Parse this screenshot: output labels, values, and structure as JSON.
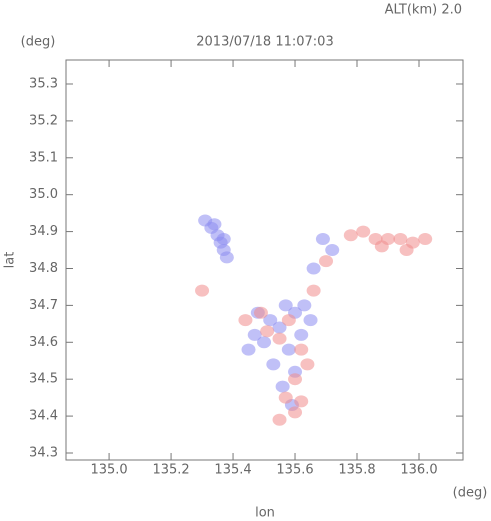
{
  "chart_data": {
    "type": "scatter",
    "title": "2013/07/18 11:07:03",
    "subtitle": "ALT(km) 2.0",
    "xlabel": "lon",
    "ylabel": "lat",
    "xunit": "(deg)",
    "yunit": "(deg)",
    "xlim": [
      134.861,
      136.142
    ],
    "ylim": [
      34.281,
      35.365
    ],
    "xticks": [
      {
        "value": 135,
        "label": "135.0"
      },
      135.2,
      135.4,
      135.6,
      135.8,
      {
        "value": 136,
        "label": "136.0"
      }
    ],
    "yticks": [
      34.3,
      34.4,
      34.5,
      34.6,
      34.7,
      34.8,
      34.9,
      {
        "value": 35,
        "label": "35.0"
      },
      35.1,
      35.2,
      35.3
    ],
    "series": [
      {
        "color": "#8c8cf0",
        "x": [
          135.31,
          135.33,
          135.35,
          135.36,
          135.37,
          135.38,
          135.37,
          135.34,
          135.48,
          135.52,
          135.55,
          135.6,
          135.62,
          135.5,
          135.58,
          135.65,
          135.53,
          135.6,
          135.47,
          135.63,
          135.56,
          135.59,
          135.72,
          135.66,
          135.45,
          135.57,
          135.69
        ],
        "y": [
          34.93,
          34.91,
          34.89,
          34.87,
          34.85,
          34.83,
          34.88,
          34.92,
          34.68,
          34.66,
          34.64,
          34.68,
          34.62,
          34.6,
          34.58,
          34.66,
          34.54,
          34.52,
          34.62,
          34.7,
          34.48,
          34.43,
          34.85,
          34.8,
          34.58,
          34.7,
          34.88
        ]
      },
      {
        "color": "#f08c8c",
        "x": [
          135.82,
          135.86,
          135.9,
          135.94,
          135.98,
          136.02,
          135.96,
          135.88,
          135.78,
          135.51,
          135.55,
          135.58,
          135.62,
          135.49,
          135.6,
          135.57,
          135.62,
          135.55,
          135.64,
          135.66,
          135.7,
          135.44,
          135.3,
          135.6
        ],
        "y": [
          34.9,
          34.88,
          34.88,
          34.88,
          34.87,
          34.88,
          34.85,
          34.86,
          34.89,
          34.63,
          34.61,
          34.66,
          34.58,
          34.68,
          34.5,
          34.45,
          34.44,
          34.39,
          34.54,
          34.74,
          34.82,
          34.66,
          34.74,
          34.41
        ]
      }
    ]
  }
}
